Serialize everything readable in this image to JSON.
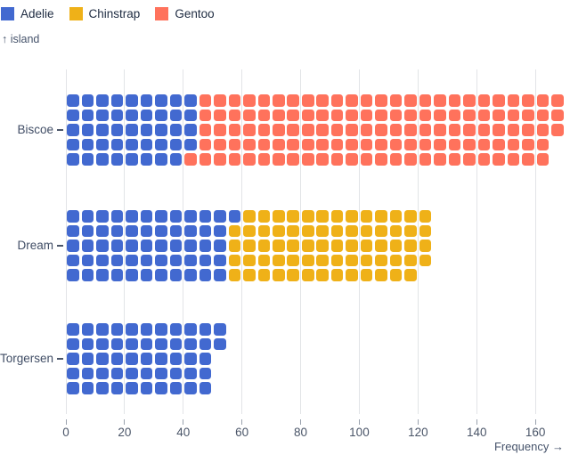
{
  "legend": {
    "items": [
      {
        "label": "Adelie",
        "color": "#4269d0"
      },
      {
        "label": "Chinstrap",
        "color": "#efb118"
      },
      {
        "label": "Gentoo",
        "color": "#ff725c"
      }
    ]
  },
  "chart_data": {
    "type": "waffle-bar-horizontal",
    "title": "",
    "xlabel": "Frequency →",
    "ylabel": "↑ island",
    "unit_value": 1,
    "rows_per_band": 5,
    "categories": [
      "Biscoe",
      "Dream",
      "Torgersen"
    ],
    "series": [
      {
        "name": "Adelie",
        "color": "#4269d0",
        "values": [
          44,
          56,
          52
        ]
      },
      {
        "name": "Chinstrap",
        "color": "#efb118",
        "values": [
          0,
          68,
          0
        ]
      },
      {
        "name": "Gentoo",
        "color": "#ff725c",
        "values": [
          124,
          0,
          0
        ]
      }
    ],
    "band_totals": [
      168,
      124,
      52
    ],
    "x_ticks": [
      0,
      20,
      40,
      60,
      80,
      100,
      120,
      140,
      160
    ],
    "xlim": [
      0,
      170
    ],
    "grid": "vertical",
    "legend_position": "top-left",
    "colors": {
      "gridline": "#e2e4e7",
      "axis_text": "#4a5568",
      "legend_text": "#1e2b41"
    }
  }
}
